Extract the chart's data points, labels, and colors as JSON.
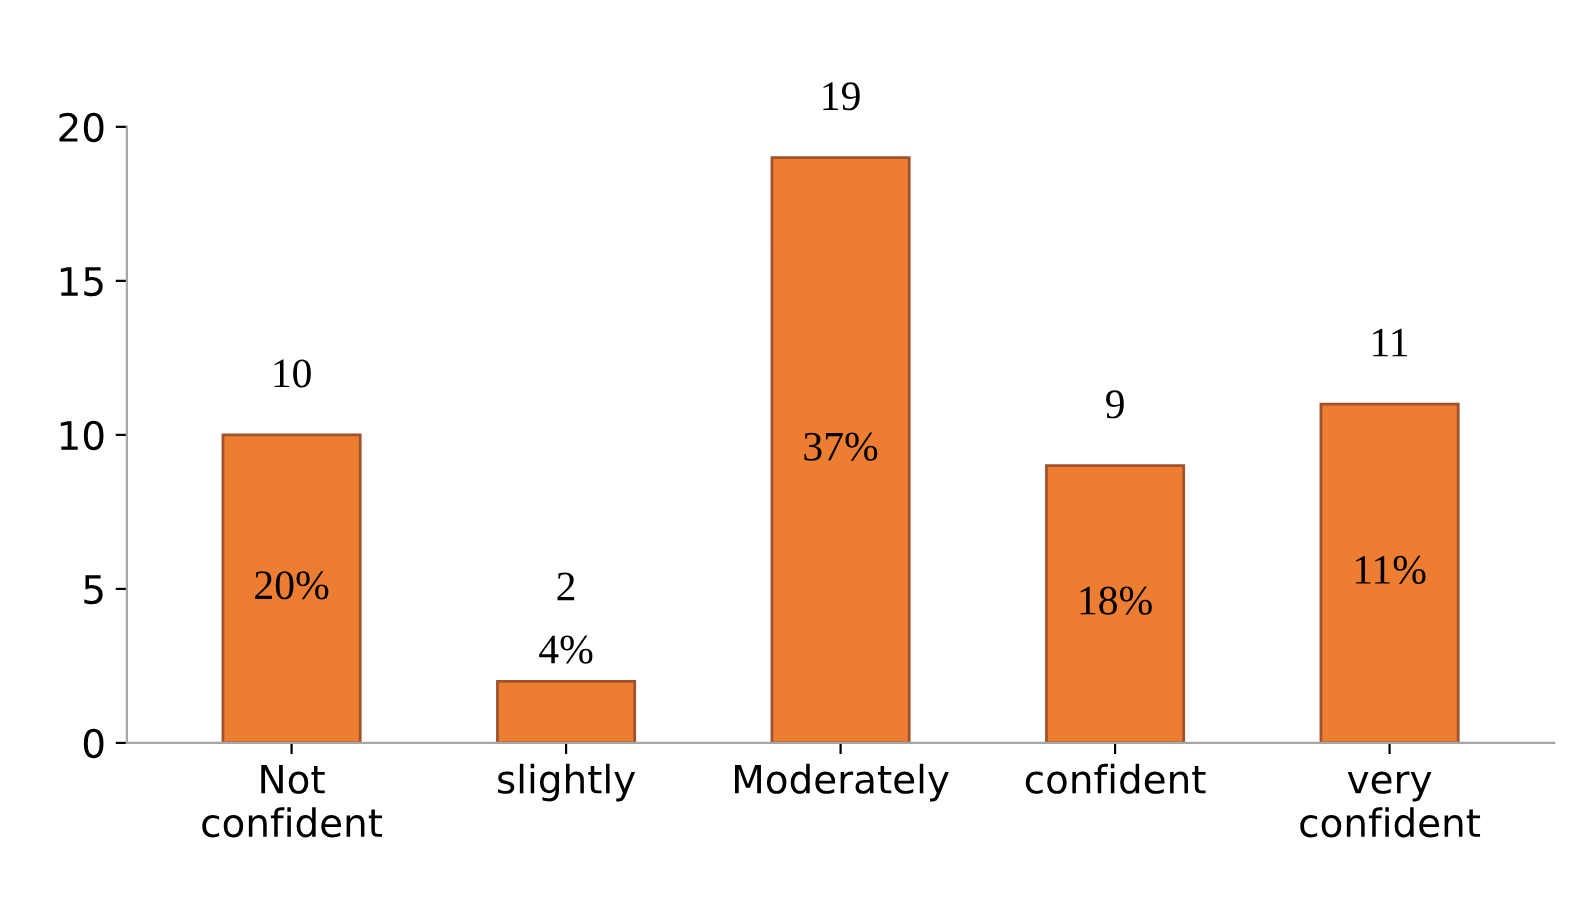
{
  "chart_data": {
    "type": "bar",
    "categories": [
      "Not\nconfident",
      "slightly",
      "Moderately",
      "confident",
      "very\nconfident"
    ],
    "values": [
      10,
      2,
      19,
      9,
      11
    ],
    "data_labels": true,
    "annotations": [
      "20%",
      "4%",
      "37%",
      "18%",
      "11%"
    ],
    "color": "#ed7d31",
    "ylim": [
      0,
      20
    ],
    "yticks": [
      0,
      5,
      10,
      15,
      20
    ],
    "grid": false,
    "legend": false
  }
}
